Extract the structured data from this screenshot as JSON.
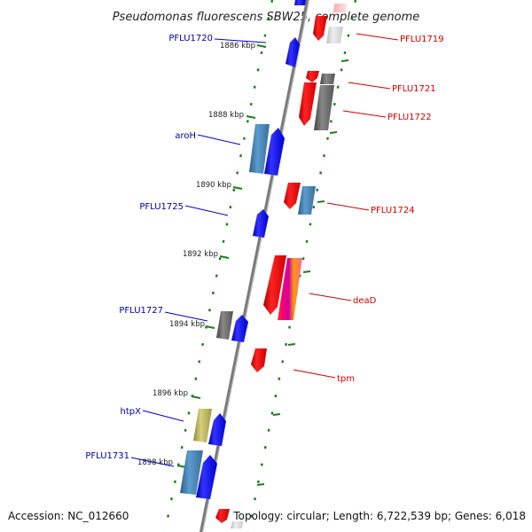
{
  "title": "Pseudomonas fluorescens SBW25, complete genome",
  "footer": {
    "accession": "Accession: NC_012660",
    "summary": "Topology: circular; Length: 6,722,539 bp; Genes: 6,018"
  },
  "colors": {
    "plus_label": "#000099",
    "minus_label": "#cc0000",
    "plus_gene": "#0000ee",
    "minus_gene": "#ee0000",
    "tick": "#1f7a1f",
    "axis": "#808080"
  },
  "ruler": [
    {
      "label": "1886 kbp"
    },
    {
      "label": "1888 kbp"
    },
    {
      "label": "1890 kbp"
    },
    {
      "label": "1892 kbp"
    },
    {
      "label": "1894 kbp"
    },
    {
      "label": "1896 kbp"
    },
    {
      "label": "1898 kbp"
    }
  ],
  "gene_labels": [
    {
      "name": "PFLU1720",
      "strand": "plus"
    },
    {
      "name": "aroH",
      "strand": "plus"
    },
    {
      "name": "PFLU1725",
      "strand": "plus"
    },
    {
      "name": "PFLU1727",
      "strand": "plus"
    },
    {
      "name": "htpX",
      "strand": "plus"
    },
    {
      "name": "PFLU1731",
      "strand": "plus"
    },
    {
      "name": "PFLU1719",
      "strand": "minus"
    },
    {
      "name": "PFLU1721",
      "strand": "minus"
    },
    {
      "name": "PFLU1722",
      "strand": "minus"
    },
    {
      "name": "PFLU1724",
      "strand": "minus"
    },
    {
      "name": "deaD",
      "strand": "minus"
    },
    {
      "name": "tpm",
      "strand": "minus"
    }
  ]
}
